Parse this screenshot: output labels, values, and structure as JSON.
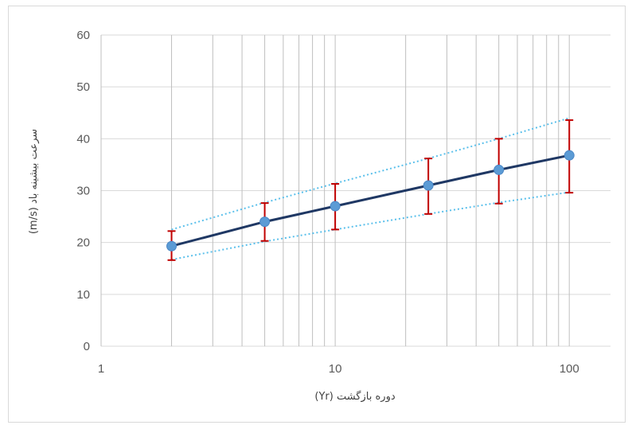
{
  "chart_data": {
    "type": "line",
    "x_scale": "log",
    "xlim": [
      1,
      150
    ],
    "ylim": [
      0,
      60
    ],
    "x_ticks": [
      "1",
      "10",
      "100"
    ],
    "y_ticks": [
      "0",
      "10",
      "20",
      "30",
      "40",
      "50",
      "60"
    ],
    "xlabel": "دوره بازگشت (Yr)",
    "ylabel": "سرعت بیشینه باد (m/s)",
    "grid": true,
    "legend": "none",
    "x": [
      2,
      5,
      10,
      25,
      50,
      100
    ],
    "series": [
      {
        "role": "estimate",
        "values": [
          19.3,
          24.0,
          27.0,
          31.0,
          34.0,
          36.8
        ],
        "color": "#1f3864",
        "marker_color": "#5b9bd5"
      },
      {
        "role": "upper-bound",
        "values": [
          22.5,
          27.7,
          31.4,
          36.2,
          40.0,
          44.0
        ],
        "color": "#5bc0eb",
        "style": "dotted"
      },
      {
        "role": "lower-bound",
        "values": [
          16.7,
          20.2,
          22.5,
          25.5,
          27.7,
          29.7
        ],
        "color": "#5bc0eb",
        "style": "dotted"
      }
    ],
    "error_bars": {
      "color": "#c00000",
      "upper": [
        22.2,
        27.6,
        31.3,
        36.2,
        40.0,
        43.6
      ],
      "lower": [
        16.6,
        20.3,
        22.5,
        25.5,
        27.5,
        29.6
      ]
    }
  }
}
